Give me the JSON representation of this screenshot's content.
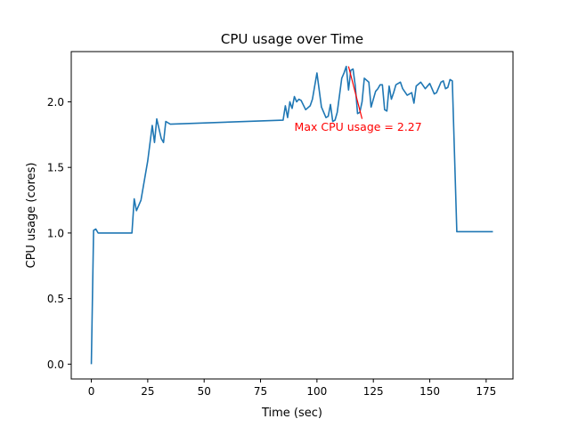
{
  "chart_data": {
    "type": "line",
    "title": "CPU usage over Time",
    "xlabel": "Time (sec)",
    "ylabel": "CPU usage (cores)",
    "xlim": [
      -8.9,
      186.9
    ],
    "ylim": [
      -0.113,
      2.383
    ],
    "xticks": [
      0,
      25,
      50,
      75,
      100,
      125,
      150,
      175
    ],
    "yticks": [
      0.0,
      0.5,
      1.0,
      1.5,
      2.0
    ],
    "ytick_labels": [
      "0.0",
      "0.5",
      "1.0",
      "1.5",
      "2.0"
    ],
    "grid": false,
    "line_color": "#1f77b4",
    "series": [
      {
        "x": [
          0,
          1,
          2,
          3,
          5,
          10,
          15,
          18,
          19,
          20,
          22,
          25,
          27,
          28,
          29,
          31,
          32,
          33,
          35,
          85,
          86,
          87,
          88,
          89,
          90,
          91,
          92,
          93,
          95,
          97,
          98,
          100,
          102,
          104,
          105,
          106,
          107,
          108,
          109,
          110,
          111,
          112,
          113,
          114,
          115,
          116,
          117,
          118,
          119,
          120,
          121,
          123,
          124,
          126,
          127,
          128,
          129,
          130,
          131,
          132,
          133,
          134,
          135,
          137,
          138,
          140,
          142,
          143,
          144,
          146,
          148,
          150,
          152,
          153,
          155,
          156,
          157,
          158,
          159,
          160,
          162,
          163,
          164,
          165,
          166,
          167,
          168,
          169,
          170,
          171,
          172,
          174,
          175,
          176,
          178
        ],
        "y": [
          0.0,
          1.02,
          1.03,
          1.0,
          1.0,
          1.0,
          1.0,
          1.0,
          1.26,
          1.17,
          1.25,
          1.55,
          1.82,
          1.69,
          1.87,
          1.72,
          1.69,
          1.85,
          1.83,
          1.86,
          1.97,
          1.88,
          2.0,
          1.95,
          2.04,
          2.0,
          2.02,
          2.01,
          1.94,
          1.97,
          2.02,
          2.22,
          1.96,
          1.88,
          1.89,
          1.98,
          1.85,
          1.86,
          1.92,
          2.05,
          2.18,
          2.22,
          2.27,
          2.09,
          2.24,
          2.25,
          2.12,
          1.91,
          1.92,
          2.0,
          2.18,
          2.15,
          1.96,
          2.08,
          2.1,
          2.13,
          2.13,
          1.94,
          1.93,
          2.12,
          2.02,
          2.07,
          2.13,
          2.15,
          2.1,
          2.05,
          2.07,
          1.99,
          2.12,
          2.15,
          2.1,
          2.14,
          2.06,
          2.07,
          2.15,
          2.16,
          2.1,
          2.11,
          2.17,
          2.16,
          1.01,
          1.01,
          1.01,
          1.01,
          1.01,
          1.01,
          1.01,
          1.01,
          1.01,
          1.01,
          1.01,
          1.01,
          1.01,
          1.01,
          1.01
        ]
      }
    ],
    "annotation": {
      "text": "Max CPU usage = 2.27",
      "color": "#ff0000",
      "point": [
        114,
        2.27
      ],
      "text_at": [
        90,
        1.78
      ]
    }
  }
}
